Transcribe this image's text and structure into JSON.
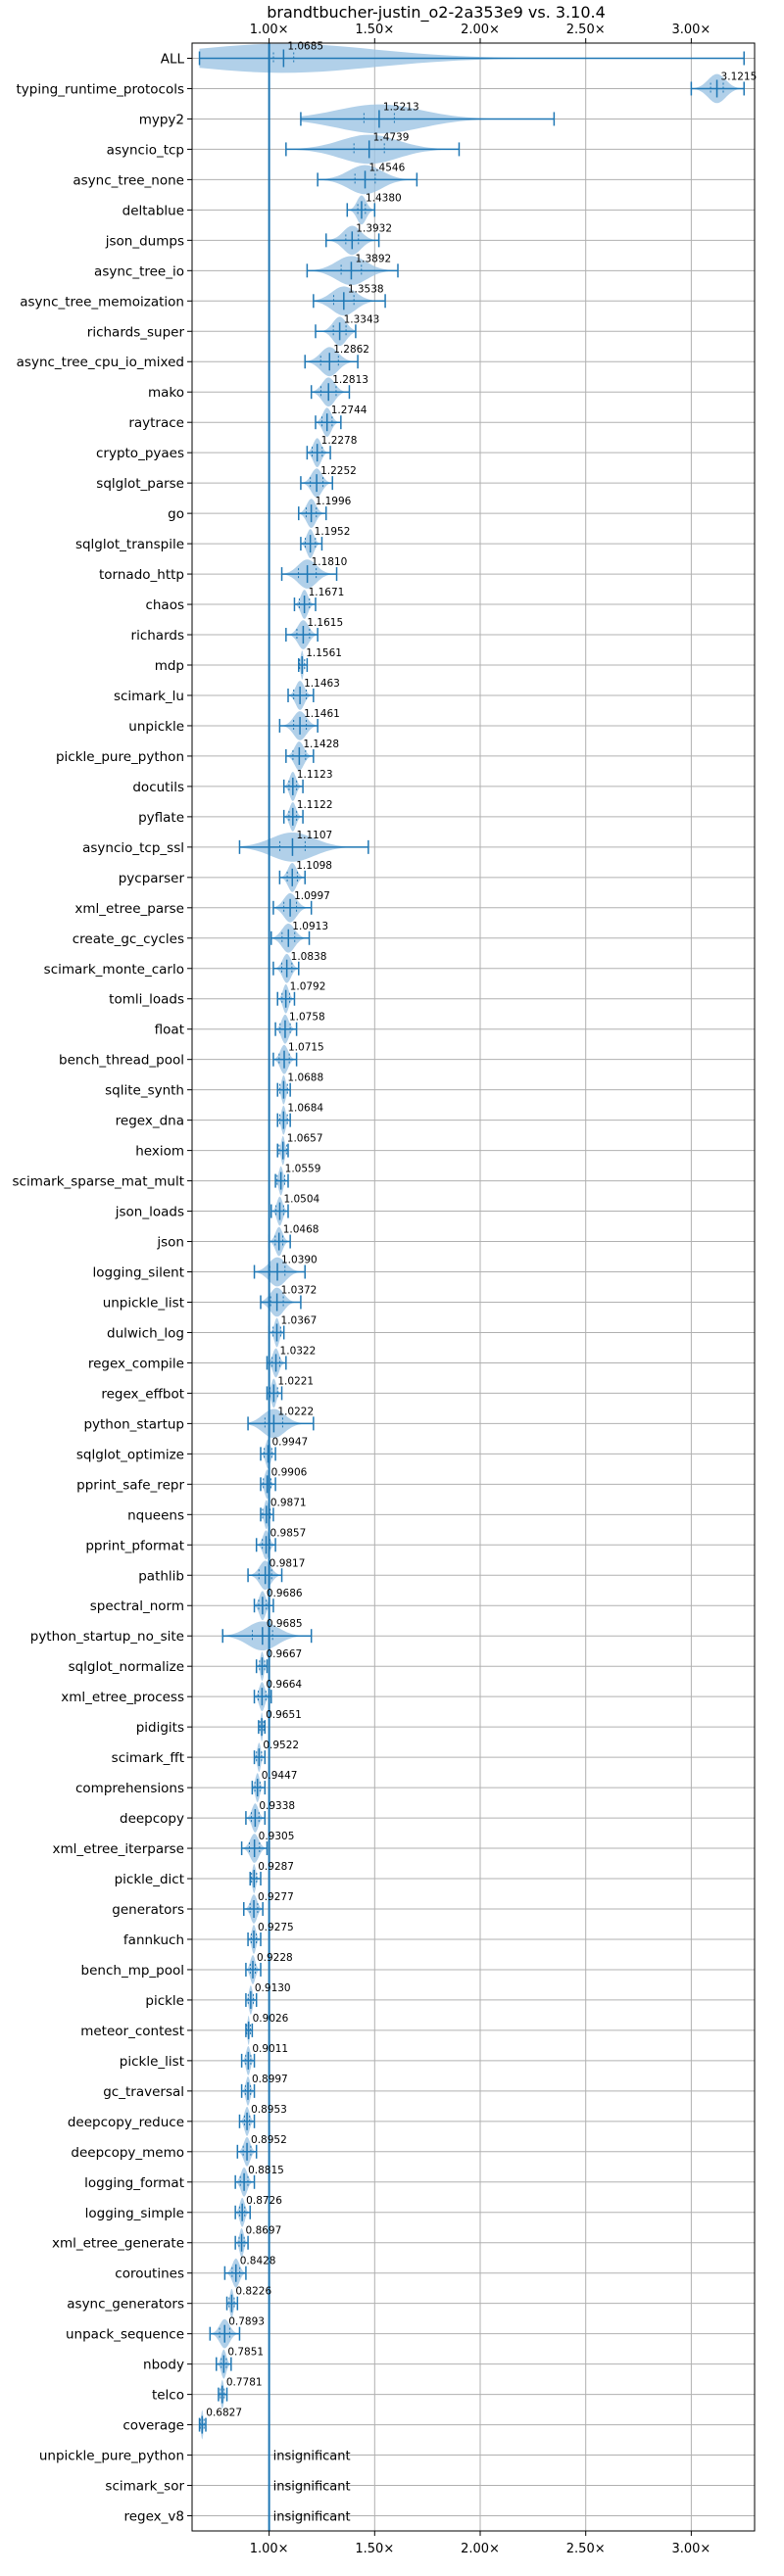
{
  "chart_data": {
    "type": "violin",
    "title": "brandtbucher-justin_o2-2a353e9 vs. 3.10.4",
    "xlim": [
      0.635,
      3.3
    ],
    "x_ticks": [
      1.0,
      1.5,
      2.0,
      2.5,
      3.0
    ],
    "x_tick_labels": [
      "1.00×",
      "1.50×",
      "2.00×",
      "2.50×",
      "3.00×"
    ],
    "baseline": 1.0,
    "grid": true,
    "colors": {
      "violin": "#9ec4e3",
      "line": "#1f77b4",
      "grid": "#b0b0b0"
    },
    "insignificant_label": "insignificant",
    "benchmarks": [
      {
        "name": "ALL",
        "value": 1.0685,
        "label": "1.0685",
        "min": 0.67,
        "max": 3.25,
        "spread": 0.08
      },
      {
        "name": "typing_runtime_protocols",
        "value": 3.1215,
        "label": "3.1215",
        "min": 3.0,
        "max": 3.25,
        "spread": 0.05
      },
      {
        "name": "mypy2",
        "value": 1.5213,
        "label": "1.5213",
        "min": 1.15,
        "max": 2.35,
        "spread": 0.12
      },
      {
        "name": "asyncio_tcp",
        "value": 1.4739,
        "label": "1.4739",
        "min": 1.08,
        "max": 1.9,
        "spread": 0.12
      },
      {
        "name": "async_tree_none",
        "value": 1.4546,
        "label": "1.4546",
        "min": 1.23,
        "max": 1.7,
        "spread": 0.08
      },
      {
        "name": "deltablue",
        "value": 1.438,
        "label": "1.4380",
        "min": 1.37,
        "max": 1.5,
        "spread": 0.03
      },
      {
        "name": "json_dumps",
        "value": 1.3932,
        "label": "1.3932",
        "min": 1.27,
        "max": 1.52,
        "spread": 0.05
      },
      {
        "name": "async_tree_io",
        "value": 1.3892,
        "label": "1.3892",
        "min": 1.18,
        "max": 1.61,
        "spread": 0.08
      },
      {
        "name": "async_tree_memoization",
        "value": 1.3538,
        "label": "1.3538",
        "min": 1.21,
        "max": 1.55,
        "spread": 0.08
      },
      {
        "name": "richards_super",
        "value": 1.3343,
        "label": "1.3343",
        "min": 1.22,
        "max": 1.41,
        "spread": 0.05
      },
      {
        "name": "async_tree_cpu_io_mixed",
        "value": 1.2862,
        "label": "1.2862",
        "min": 1.17,
        "max": 1.42,
        "spread": 0.07
      },
      {
        "name": "mako",
        "value": 1.2813,
        "label": "1.2813",
        "min": 1.2,
        "max": 1.38,
        "spread": 0.06
      },
      {
        "name": "raytrace",
        "value": 1.2744,
        "label": "1.2744",
        "min": 1.22,
        "max": 1.34,
        "spread": 0.04
      },
      {
        "name": "crypto_pyaes",
        "value": 1.2278,
        "label": "1.2278",
        "min": 1.18,
        "max": 1.29,
        "spread": 0.04
      },
      {
        "name": "sqlglot_parse",
        "value": 1.2252,
        "label": "1.2252",
        "min": 1.15,
        "max": 1.3,
        "spread": 0.05
      },
      {
        "name": "go",
        "value": 1.1996,
        "label": "1.1996",
        "min": 1.14,
        "max": 1.27,
        "spread": 0.04
      },
      {
        "name": "sqlglot_transpile",
        "value": 1.1952,
        "label": "1.1952",
        "min": 1.15,
        "max": 1.25,
        "spread": 0.04
      },
      {
        "name": "tornado_http",
        "value": 1.181,
        "label": "1.1810",
        "min": 1.06,
        "max": 1.32,
        "spread": 0.07
      },
      {
        "name": "chaos",
        "value": 1.1671,
        "label": "1.1671",
        "min": 1.12,
        "max": 1.22,
        "spread": 0.04
      },
      {
        "name": "richards",
        "value": 1.1615,
        "label": "1.1615",
        "min": 1.08,
        "max": 1.23,
        "spread": 0.05
      },
      {
        "name": "mdp",
        "value": 1.1561,
        "label": "1.1561",
        "min": 1.14,
        "max": 1.18,
        "spread": 0.02
      },
      {
        "name": "scimark_lu",
        "value": 1.1463,
        "label": "1.1463",
        "min": 1.09,
        "max": 1.21,
        "spread": 0.05
      },
      {
        "name": "unpickle",
        "value": 1.1461,
        "label": "1.1461",
        "min": 1.05,
        "max": 1.23,
        "spread": 0.05
      },
      {
        "name": "pickle_pure_python",
        "value": 1.1428,
        "label": "1.1428",
        "min": 1.08,
        "max": 1.21,
        "spread": 0.05
      },
      {
        "name": "docutils",
        "value": 1.1123,
        "label": "1.1123",
        "min": 1.07,
        "max": 1.16,
        "spread": 0.03
      },
      {
        "name": "pyflate",
        "value": 1.1122,
        "label": "1.1122",
        "min": 1.07,
        "max": 1.16,
        "spread": 0.03
      },
      {
        "name": "asyncio_tcp_ssl",
        "value": 1.1107,
        "label": "1.1107",
        "min": 0.86,
        "max": 1.47,
        "spread": 0.1
      },
      {
        "name": "pycparser",
        "value": 1.1098,
        "label": "1.1098",
        "min": 1.05,
        "max": 1.17,
        "spread": 0.04
      },
      {
        "name": "xml_etree_parse",
        "value": 1.0997,
        "label": "1.0997",
        "min": 1.02,
        "max": 1.2,
        "spread": 0.05
      },
      {
        "name": "create_gc_cycles",
        "value": 1.0913,
        "label": "1.0913",
        "min": 1.01,
        "max": 1.19,
        "spread": 0.05
      },
      {
        "name": "scimark_monte_carlo",
        "value": 1.0838,
        "label": "1.0838",
        "min": 1.02,
        "max": 1.14,
        "spread": 0.04
      },
      {
        "name": "tomli_loads",
        "value": 1.0792,
        "label": "1.0792",
        "min": 1.04,
        "max": 1.12,
        "spread": 0.03
      },
      {
        "name": "float",
        "value": 1.0758,
        "label": "1.0758",
        "min": 1.03,
        "max": 1.13,
        "spread": 0.04
      },
      {
        "name": "bench_thread_pool",
        "value": 1.0715,
        "label": "1.0715",
        "min": 1.02,
        "max": 1.13,
        "spread": 0.04
      },
      {
        "name": "sqlite_synth",
        "value": 1.0688,
        "label": "1.0688",
        "min": 1.04,
        "max": 1.1,
        "spread": 0.03
      },
      {
        "name": "regex_dna",
        "value": 1.0684,
        "label": "1.0684",
        "min": 1.04,
        "max": 1.1,
        "spread": 0.03
      },
      {
        "name": "hexiom",
        "value": 1.0657,
        "label": "1.0657",
        "min": 1.04,
        "max": 1.09,
        "spread": 0.03
      },
      {
        "name": "scimark_sparse_mat_mult",
        "value": 1.0559,
        "label": "1.0559",
        "min": 1.03,
        "max": 1.09,
        "spread": 0.03
      },
      {
        "name": "json_loads",
        "value": 1.0504,
        "label": "1.0504",
        "min": 1.01,
        "max": 1.09,
        "spread": 0.03
      },
      {
        "name": "json",
        "value": 1.0468,
        "label": "1.0468",
        "min": 1.0,
        "max": 1.1,
        "spread": 0.03
      },
      {
        "name": "logging_silent",
        "value": 1.039,
        "label": "1.0390",
        "min": 0.93,
        "max": 1.17,
        "spread": 0.06
      },
      {
        "name": "unpickle_list",
        "value": 1.0372,
        "label": "1.0372",
        "min": 0.96,
        "max": 1.15,
        "spread": 0.05
      },
      {
        "name": "dulwich_log",
        "value": 1.0367,
        "label": "1.0367",
        "min": 1.0,
        "max": 1.07,
        "spread": 0.03
      },
      {
        "name": "regex_compile",
        "value": 1.0322,
        "label": "1.0322",
        "min": 0.99,
        "max": 1.08,
        "spread": 0.03
      },
      {
        "name": "regex_effbot",
        "value": 1.0221,
        "label": "1.0221",
        "min": 0.99,
        "max": 1.06,
        "spread": 0.03
      },
      {
        "name": "python_startup",
        "value": 1.0222,
        "label": "1.0222",
        "min": 0.9,
        "max": 1.21,
        "spread": 0.07
      },
      {
        "name": "sqlglot_optimize",
        "value": 0.9947,
        "label": "0.9947",
        "min": 0.96,
        "max": 1.03,
        "spread": 0.03
      },
      {
        "name": "pprint_safe_repr",
        "value": 0.9906,
        "label": "0.9906",
        "min": 0.96,
        "max": 1.03,
        "spread": 0.03
      },
      {
        "name": "nqueens",
        "value": 0.9871,
        "label": "0.9871",
        "min": 0.96,
        "max": 1.02,
        "spread": 0.03
      },
      {
        "name": "pprint_pformat",
        "value": 0.9857,
        "label": "0.9857",
        "min": 0.94,
        "max": 1.03,
        "spread": 0.03
      },
      {
        "name": "pathlib",
        "value": 0.9817,
        "label": "0.9817",
        "min": 0.9,
        "max": 1.06,
        "spread": 0.05
      },
      {
        "name": "spectral_norm",
        "value": 0.9686,
        "label": "0.9686",
        "min": 0.93,
        "max": 1.02,
        "spread": 0.03
      },
      {
        "name": "python_startup_no_site",
        "value": 0.9685,
        "label": "0.9685",
        "min": 0.78,
        "max": 1.2,
        "spread": 0.08
      },
      {
        "name": "sqlglot_normalize",
        "value": 0.9667,
        "label": "0.9667",
        "min": 0.94,
        "max": 0.99,
        "spread": 0.02
      },
      {
        "name": "xml_etree_process",
        "value": 0.9664,
        "label": "0.9664",
        "min": 0.93,
        "max": 1.01,
        "spread": 0.03
      },
      {
        "name": "pidigits",
        "value": 0.9651,
        "label": "0.9651",
        "min": 0.95,
        "max": 0.98,
        "spread": 0.015
      },
      {
        "name": "scimark_fft",
        "value": 0.9522,
        "label": "0.9522",
        "min": 0.93,
        "max": 0.98,
        "spread": 0.02
      },
      {
        "name": "comprehensions",
        "value": 0.9447,
        "label": "0.9447",
        "min": 0.92,
        "max": 0.98,
        "spread": 0.02
      },
      {
        "name": "deepcopy",
        "value": 0.9338,
        "label": "0.9338",
        "min": 0.89,
        "max": 0.98,
        "spread": 0.03
      },
      {
        "name": "xml_etree_iterparse",
        "value": 0.9305,
        "label": "0.9305",
        "min": 0.87,
        "max": 0.99,
        "spread": 0.04
      },
      {
        "name": "pickle_dict",
        "value": 0.9287,
        "label": "0.9287",
        "min": 0.91,
        "max": 0.96,
        "spread": 0.02
      },
      {
        "name": "generators",
        "value": 0.9277,
        "label": "0.9277",
        "min": 0.88,
        "max": 0.97,
        "spread": 0.03
      },
      {
        "name": "fannkuch",
        "value": 0.9275,
        "label": "0.9275",
        "min": 0.9,
        "max": 0.96,
        "spread": 0.02
      },
      {
        "name": "bench_mp_pool",
        "value": 0.9228,
        "label": "0.9228",
        "min": 0.89,
        "max": 0.96,
        "spread": 0.02
      },
      {
        "name": "pickle",
        "value": 0.913,
        "label": "0.9130",
        "min": 0.89,
        "max": 0.94,
        "spread": 0.02
      },
      {
        "name": "meteor_contest",
        "value": 0.9026,
        "label": "0.9026",
        "min": 0.89,
        "max": 0.92,
        "spread": 0.015
      },
      {
        "name": "pickle_list",
        "value": 0.9011,
        "label": "0.9011",
        "min": 0.87,
        "max": 0.93,
        "spread": 0.02
      },
      {
        "name": "gc_traversal",
        "value": 0.8997,
        "label": "0.8997",
        "min": 0.87,
        "max": 0.93,
        "spread": 0.02
      },
      {
        "name": "deepcopy_reduce",
        "value": 0.8953,
        "label": "0.8953",
        "min": 0.86,
        "max": 0.93,
        "spread": 0.02
      },
      {
        "name": "deepcopy_memo",
        "value": 0.8952,
        "label": "0.8952",
        "min": 0.85,
        "max": 0.94,
        "spread": 0.03
      },
      {
        "name": "logging_format",
        "value": 0.8815,
        "label": "0.8815",
        "min": 0.84,
        "max": 0.93,
        "spread": 0.03
      },
      {
        "name": "logging_simple",
        "value": 0.8726,
        "label": "0.8726",
        "min": 0.84,
        "max": 0.91,
        "spread": 0.02
      },
      {
        "name": "xml_etree_generate",
        "value": 0.8697,
        "label": "0.8697",
        "min": 0.84,
        "max": 0.9,
        "spread": 0.02
      },
      {
        "name": "coroutines",
        "value": 0.8428,
        "label": "0.8428",
        "min": 0.79,
        "max": 0.89,
        "spread": 0.03
      },
      {
        "name": "async_generators",
        "value": 0.8226,
        "label": "0.8226",
        "min": 0.8,
        "max": 0.85,
        "spread": 0.02
      },
      {
        "name": "unpack_sequence",
        "value": 0.7893,
        "label": "0.7893",
        "min": 0.72,
        "max": 0.86,
        "spread": 0.04
      },
      {
        "name": "nbody",
        "value": 0.7851,
        "label": "0.7851",
        "min": 0.75,
        "max": 0.82,
        "spread": 0.02
      },
      {
        "name": "telco",
        "value": 0.7781,
        "label": "0.7781",
        "min": 0.76,
        "max": 0.8,
        "spread": 0.015
      },
      {
        "name": "coverage",
        "value": 0.6827,
        "label": "0.6827",
        "min": 0.67,
        "max": 0.7,
        "spread": 0.015
      },
      {
        "name": "unpickle_pure_python",
        "value": null,
        "label": "insignificant"
      },
      {
        "name": "scimark_sor",
        "value": null,
        "label": "insignificant"
      },
      {
        "name": "regex_v8",
        "value": null,
        "label": "insignificant"
      }
    ]
  }
}
